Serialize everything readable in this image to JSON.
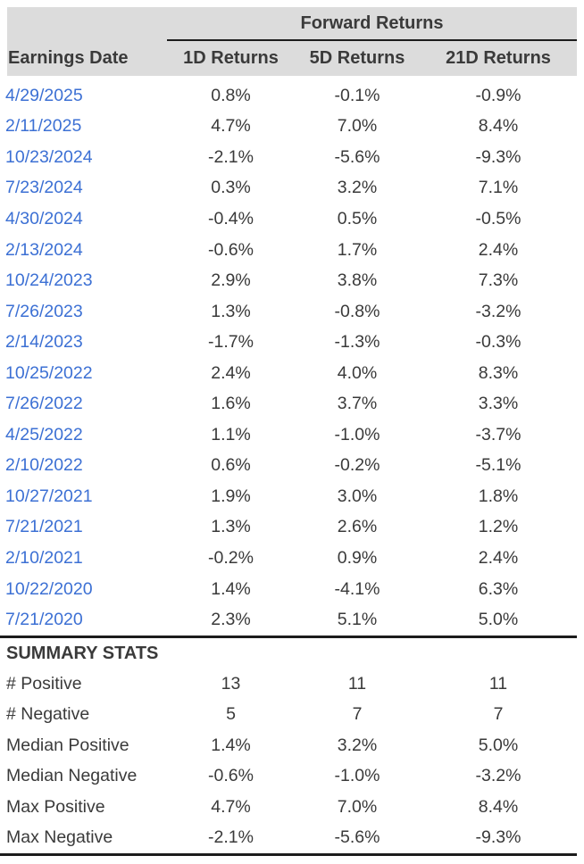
{
  "chart_data": {
    "type": "table",
    "group_header": "Forward Returns",
    "columns": [
      "Earnings Date",
      "1D Returns",
      "5D Returns",
      "21D Returns"
    ],
    "rows": [
      {
        "date": "4/29/2025",
        "values": [
          "0.8%",
          "-0.1%",
          "-0.9%"
        ]
      },
      {
        "date": "2/11/2025",
        "values": [
          "4.7%",
          "7.0%",
          "8.4%"
        ]
      },
      {
        "date": "10/23/2024",
        "values": [
          "-2.1%",
          "-5.6%",
          "-9.3%"
        ]
      },
      {
        "date": "7/23/2024",
        "values": [
          "0.3%",
          "3.2%",
          "7.1%"
        ]
      },
      {
        "date": "4/30/2024",
        "values": [
          "-0.4%",
          "0.5%",
          "-0.5%"
        ]
      },
      {
        "date": "2/13/2024",
        "values": [
          "-0.6%",
          "1.7%",
          "2.4%"
        ]
      },
      {
        "date": "10/24/2023",
        "values": [
          "2.9%",
          "3.8%",
          "7.3%"
        ]
      },
      {
        "date": "7/26/2023",
        "values": [
          "1.3%",
          "-0.8%",
          "-3.2%"
        ]
      },
      {
        "date": "2/14/2023",
        "values": [
          "-1.7%",
          "-1.3%",
          "-0.3%"
        ]
      },
      {
        "date": "10/25/2022",
        "values": [
          "2.4%",
          "4.0%",
          "8.3%"
        ]
      },
      {
        "date": "7/26/2022",
        "values": [
          "1.6%",
          "3.7%",
          "3.3%"
        ]
      },
      {
        "date": "4/25/2022",
        "values": [
          "1.1%",
          "-1.0%",
          "-3.7%"
        ]
      },
      {
        "date": "2/10/2022",
        "values": [
          "0.6%",
          "-0.2%",
          "-5.1%"
        ]
      },
      {
        "date": "10/27/2021",
        "values": [
          "1.9%",
          "3.0%",
          "1.8%"
        ]
      },
      {
        "date": "7/21/2021",
        "values": [
          "1.3%",
          "2.6%",
          "1.2%"
        ]
      },
      {
        "date": "2/10/2021",
        "values": [
          "-0.2%",
          "0.9%",
          "2.4%"
        ]
      },
      {
        "date": "10/22/2020",
        "values": [
          "1.4%",
          "-4.1%",
          "6.3%"
        ]
      },
      {
        "date": "7/21/2020",
        "values": [
          "2.3%",
          "5.1%",
          "5.0%"
        ]
      }
    ],
    "summary": {
      "title": "SUMMARY STATS",
      "rows": [
        {
          "label": "# Positive",
          "values": [
            "13",
            "11",
            "11"
          ]
        },
        {
          "label": "# Negative",
          "values": [
            "5",
            "7",
            "7"
          ]
        },
        {
          "label": "Median Positive",
          "values": [
            "1.4%",
            "3.2%",
            "5.0%"
          ]
        },
        {
          "label": "Median Negative",
          "values": [
            "-0.6%",
            "-1.0%",
            "-3.2%"
          ]
        },
        {
          "label": "Max Positive",
          "values": [
            "4.7%",
            "7.0%",
            "8.4%"
          ]
        },
        {
          "label": "Max Negative",
          "values": [
            "-2.1%",
            "-5.6%",
            "-9.3%"
          ]
        }
      ]
    }
  },
  "colors": {
    "header_bg": "#dcdcdc",
    "date_link": "#3c70d4",
    "text": "#3a3a3a",
    "rule": "#1c1c1c"
  }
}
